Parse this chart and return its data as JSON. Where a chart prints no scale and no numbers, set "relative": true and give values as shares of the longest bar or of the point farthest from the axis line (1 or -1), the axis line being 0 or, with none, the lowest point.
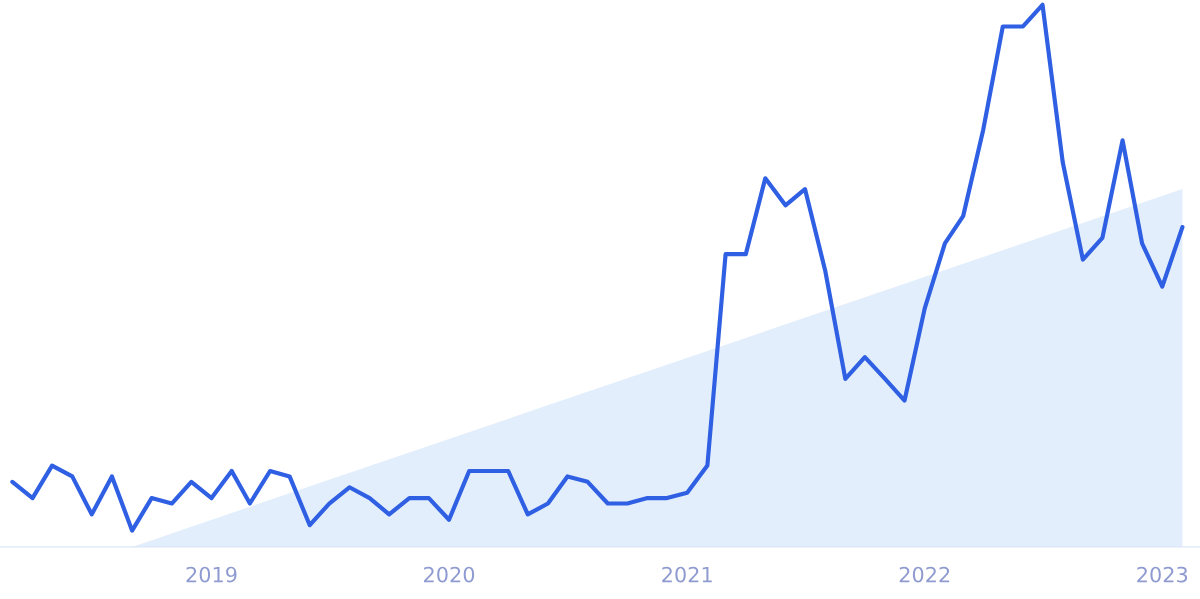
{
  "chart_data": {
    "type": "line",
    "relative": true,
    "tick_labels": "x",
    "xlim": [
      "2018-02-10",
      "2023-02-28"
    ],
    "xticks": [
      "2019",
      "2020",
      "2021",
      "2022",
      "2023"
    ],
    "series": [
      {
        "type": "area",
        "color": "#e3eefc",
        "x": [
          "2018-09",
          "2023-02"
        ],
        "values": [
          0,
          0.66
        ]
      },
      {
        "color": "#2f5fe3",
        "x": [
          "2018-03",
          "2018-04",
          "2018-05",
          "2018-06",
          "2018-07",
          "2018-08",
          "2018-09",
          "2018-10",
          "2018-11",
          "2018-12",
          "2019-01",
          "2019-02",
          "2019-03",
          "2019-04",
          "2019-05",
          "2019-06",
          "2019-07",
          "2019-08",
          "2019-09",
          "2019-10",
          "2019-11",
          "2019-12",
          "2020-01",
          "2020-02",
          "2020-03",
          "2020-04",
          "2020-05",
          "2020-06",
          "2020-07",
          "2020-08",
          "2020-09",
          "2020-10",
          "2020-11",
          "2020-12",
          "2021-01",
          "2021-02",
          "2021-03",
          "2021-04",
          "2021-05",
          "2021-06",
          "2021-07",
          "2021-08",
          "2021-09",
          "2021-10",
          "2021-11",
          "2021-12",
          "2022-01",
          "2022-02",
          "2022-03",
          "2022-04",
          "2022-05",
          "2022-06",
          "2022-07",
          "2022-08",
          "2022-09",
          "2022-10",
          "2022-11",
          "2022-12",
          "2023-01",
          "2023-02"
        ],
        "values": [
          0.12,
          0.09,
          0.15,
          0.13,
          0.06,
          0.13,
          0.03,
          0.09,
          0.08,
          0.12,
          0.09,
          0.14,
          0.08,
          0.14,
          0.13,
          0.04,
          0.08,
          0.11,
          0.09,
          0.06,
          0.09,
          0.09,
          0.05,
          0.14,
          0.14,
          0.14,
          0.06,
          0.08,
          0.13,
          0.12,
          0.08,
          0.08,
          0.09,
          0.09,
          0.1,
          0.15,
          0.54,
          0.54,
          0.68,
          0.63,
          0.66,
          0.51,
          0.31,
          0.35,
          0.31,
          0.27,
          0.44,
          0.56,
          0.61,
          0.77,
          0.96,
          0.96,
          1,
          0.71,
          0.53,
          0.57,
          0.75,
          0.56,
          0.48,
          0.59
        ]
      }
    ]
  }
}
